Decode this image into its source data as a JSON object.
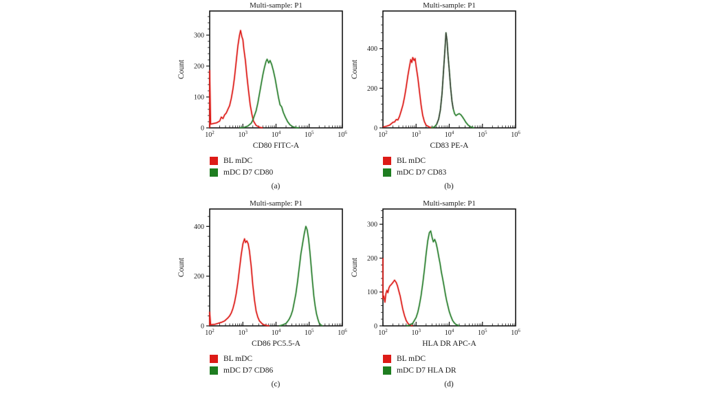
{
  "figure": {
    "background": "#ffffff",
    "y_axis_label": "Count",
    "accent_red": "#dd1b17",
    "accent_green": "#1e7d20"
  },
  "chart_data": [
    {
      "type": "line",
      "panel_label": "(a)",
      "title": "Multi-sample: P1",
      "xlabel": "CD80 FITC-A",
      "ylabel": "Count",
      "xscale": "log10",
      "xlim_log10": [
        2,
        6
      ],
      "ylim": [
        0,
        378
      ],
      "yticks": [
        0,
        100,
        200,
        300
      ],
      "y_minor_step": 20,
      "legend": [
        {
          "label": "BL mDC",
          "color": "#dd1b17"
        },
        {
          "label": "mDC D7 CD80",
          "color": "#1e7d20"
        }
      ],
      "series": [
        {
          "name": "BL mDC",
          "color": "#dd1b17",
          "points": [
            [
              2.0,
              0
            ],
            [
              2.0,
              185
            ],
            [
              2.03,
              12
            ],
            [
              2.1,
              14
            ],
            [
              2.2,
              16
            ],
            [
              2.3,
              22
            ],
            [
              2.35,
              35
            ],
            [
              2.4,
              30
            ],
            [
              2.45,
              42
            ],
            [
              2.5,
              48
            ],
            [
              2.55,
              60
            ],
            [
              2.6,
              72
            ],
            [
              2.65,
              95
            ],
            [
              2.7,
              125
            ],
            [
              2.75,
              165
            ],
            [
              2.8,
              215
            ],
            [
              2.85,
              265
            ],
            [
              2.9,
              300
            ],
            [
              2.93,
              315
            ],
            [
              2.97,
              295
            ],
            [
              3.0,
              285
            ],
            [
              3.03,
              255
            ],
            [
              3.08,
              215
            ],
            [
              3.12,
              170
            ],
            [
              3.17,
              120
            ],
            [
              3.22,
              75
            ],
            [
              3.27,
              45
            ],
            [
              3.32,
              22
            ],
            [
              3.4,
              8
            ],
            [
              3.5,
              2
            ],
            [
              3.6,
              0
            ]
          ]
        },
        {
          "name": "mDC D7 CD80",
          "color": "#2c8030",
          "points": [
            [
              2.9,
              0
            ],
            [
              3.05,
              2
            ],
            [
              3.15,
              6
            ],
            [
              3.25,
              15
            ],
            [
              3.3,
              25
            ],
            [
              3.4,
              55
            ],
            [
              3.45,
              80
            ],
            [
              3.5,
              110
            ],
            [
              3.55,
              140
            ],
            [
              3.6,
              170
            ],
            [
              3.65,
              195
            ],
            [
              3.7,
              215
            ],
            [
              3.73,
              222
            ],
            [
              3.78,
              210
            ],
            [
              3.82,
              218
            ],
            [
              3.87,
              205
            ],
            [
              3.92,
              185
            ],
            [
              3.97,
              160
            ],
            [
              4.02,
              130
            ],
            [
              4.07,
              100
            ],
            [
              4.12,
              75
            ],
            [
              4.17,
              68
            ],
            [
              4.22,
              50
            ],
            [
              4.28,
              35
            ],
            [
              4.35,
              20
            ],
            [
              4.42,
              10
            ],
            [
              4.5,
              4
            ],
            [
              4.6,
              1
            ],
            [
              4.7,
              0
            ]
          ]
        }
      ]
    },
    {
      "type": "line",
      "panel_label": "(b)",
      "title": "Multi-sample: P1",
      "xlabel": "CD83 PE-A",
      "ylabel": "Count",
      "xscale": "log10",
      "xlim_log10": [
        2,
        6
      ],
      "ylim": [
        0,
        590
      ],
      "yticks": [
        0,
        200,
        400
      ],
      "y_minor_step": 40,
      "legend": [
        {
          "label": "BL mDC",
          "color": "#dd1b17"
        },
        {
          "label": "mDC D7 CD83",
          "color": "#1e7d20"
        }
      ],
      "series": [
        {
          "name": "BL mDC",
          "color": "#dd1b17",
          "points": [
            [
              2.0,
              4
            ],
            [
              2.1,
              8
            ],
            [
              2.2,
              14
            ],
            [
              2.3,
              28
            ],
            [
              2.35,
              30
            ],
            [
              2.4,
              42
            ],
            [
              2.45,
              40
            ],
            [
              2.5,
              58
            ],
            [
              2.55,
              85
            ],
            [
              2.6,
              115
            ],
            [
              2.65,
              155
            ],
            [
              2.7,
              205
            ],
            [
              2.75,
              262
            ],
            [
              2.8,
              310
            ],
            [
              2.84,
              345
            ],
            [
              2.87,
              330
            ],
            [
              2.9,
              355
            ],
            [
              2.94,
              340
            ],
            [
              2.97,
              350
            ],
            [
              3.0,
              310
            ],
            [
              3.05,
              255
            ],
            [
              3.1,
              185
            ],
            [
              3.15,
              115
            ],
            [
              3.2,
              62
            ],
            [
              3.25,
              32
            ],
            [
              3.3,
              14
            ],
            [
              3.4,
              4
            ],
            [
              3.5,
              0
            ]
          ]
        },
        {
          "name": "mDC D7 CD83",
          "color": "#2c8030",
          "overlay": {
            "color": "#3f443c",
            "range": [
              3.62,
              4.12
            ]
          },
          "points": [
            [
              3.45,
              0
            ],
            [
              3.55,
              5
            ],
            [
              3.62,
              18
            ],
            [
              3.68,
              45
            ],
            [
              3.73,
              90
            ],
            [
              3.78,
              170
            ],
            [
              3.82,
              270
            ],
            [
              3.86,
              370
            ],
            [
              3.9,
              480
            ],
            [
              3.93,
              445
            ],
            [
              3.96,
              370
            ],
            [
              4.0,
              290
            ],
            [
              4.04,
              205
            ],
            [
              4.08,
              135
            ],
            [
              4.12,
              95
            ],
            [
              4.16,
              72
            ],
            [
              4.2,
              62
            ],
            [
              4.25,
              68
            ],
            [
              4.3,
              72
            ],
            [
              4.35,
              66
            ],
            [
              4.4,
              55
            ],
            [
              4.45,
              42
            ],
            [
              4.5,
              28
            ],
            [
              4.57,
              14
            ],
            [
              4.65,
              5
            ],
            [
              4.75,
              0
            ]
          ]
        }
      ]
    },
    {
      "type": "line",
      "panel_label": "(c)",
      "title": "Multi-sample: P1",
      "xlabel": "CD86 PC5.5-A",
      "ylabel": "Count",
      "xscale": "log10",
      "xlim_log10": [
        2,
        6
      ],
      "ylim": [
        0,
        470
      ],
      "yticks": [
        0,
        200,
        400
      ],
      "y_minor_step": 40,
      "legend": [
        {
          "label": "BL mDC",
          "color": "#dd1b17"
        },
        {
          "label": "mDC D7 CD86",
          "color": "#1e7d20"
        }
      ],
      "series": [
        {
          "name": "BL mDC",
          "color": "#dd1b17",
          "points": [
            [
              2.0,
              0
            ],
            [
              2.0,
              55
            ],
            [
              2.03,
              5
            ],
            [
              2.15,
              6
            ],
            [
              2.25,
              10
            ],
            [
              2.35,
              14
            ],
            [
              2.45,
              20
            ],
            [
              2.5,
              26
            ],
            [
              2.55,
              32
            ],
            [
              2.6,
              40
            ],
            [
              2.65,
              52
            ],
            [
              2.7,
              70
            ],
            [
              2.75,
              95
            ],
            [
              2.8,
              130
            ],
            [
              2.85,
              175
            ],
            [
              2.9,
              230
            ],
            [
              2.95,
              285
            ],
            [
              3.0,
              330
            ],
            [
              3.05,
              350
            ],
            [
              3.08,
              335
            ],
            [
              3.12,
              342
            ],
            [
              3.16,
              330
            ],
            [
              3.2,
              300
            ],
            [
              3.25,
              242
            ],
            [
              3.3,
              165
            ],
            [
              3.35,
              105
            ],
            [
              3.4,
              60
            ],
            [
              3.45,
              35
            ],
            [
              3.5,
              20
            ],
            [
              3.6,
              6
            ],
            [
              3.7,
              2
            ],
            [
              3.8,
              0
            ]
          ]
        },
        {
          "name": "mDC D7 CD86",
          "color": "#2c8030",
          "points": [
            [
              4.1,
              0
            ],
            [
              4.2,
              4
            ],
            [
              4.3,
              10
            ],
            [
              4.35,
              18
            ],
            [
              4.4,
              28
            ],
            [
              4.45,
              42
            ],
            [
              4.5,
              62
            ],
            [
              4.55,
              95
            ],
            [
              4.6,
              130
            ],
            [
              4.65,
              180
            ],
            [
              4.7,
              235
            ],
            [
              4.75,
              290
            ],
            [
              4.8,
              330
            ],
            [
              4.85,
              370
            ],
            [
              4.9,
              400
            ],
            [
              4.94,
              385
            ],
            [
              4.98,
              350
            ],
            [
              5.02,
              300
            ],
            [
              5.06,
              240
            ],
            [
              5.1,
              175
            ],
            [
              5.14,
              120
            ],
            [
              5.18,
              80
            ],
            [
              5.22,
              48
            ],
            [
              5.26,
              28
            ],
            [
              5.3,
              12
            ],
            [
              5.35,
              4
            ],
            [
              5.4,
              0
            ]
          ]
        }
      ]
    },
    {
      "type": "line",
      "panel_label": "(d)",
      "title": "Multi-sample: P1",
      "xlabel": "HLA DR APC-A",
      "ylabel": "Count",
      "xscale": "log10",
      "xlim_log10": [
        2,
        6
      ],
      "ylim": [
        0,
        345
      ],
      "yticks": [
        0,
        100,
        200,
        300
      ],
      "y_minor_step": 20,
      "legend": [
        {
          "label": "BL mDC",
          "color": "#dd1b17"
        },
        {
          "label": "mDC D7 HLA DR",
          "color": "#1e7d20"
        }
      ],
      "series": [
        {
          "name": "BL mDC",
          "color": "#dd1b17",
          "points": [
            [
              2.0,
              200
            ],
            [
              2.0,
              80
            ],
            [
              2.03,
              88
            ],
            [
              2.06,
              70
            ],
            [
              2.09,
              95
            ],
            [
              2.12,
              105
            ],
            [
              2.15,
              98
            ],
            [
              2.18,
              112
            ],
            [
              2.21,
              118
            ],
            [
              2.25,
              122
            ],
            [
              2.3,
              128
            ],
            [
              2.35,
              135
            ],
            [
              2.4,
              128
            ],
            [
              2.44,
              118
            ],
            [
              2.48,
              102
            ],
            [
              2.52,
              88
            ],
            [
              2.56,
              68
            ],
            [
              2.6,
              48
            ],
            [
              2.65,
              30
            ],
            [
              2.7,
              16
            ],
            [
              2.75,
              8
            ],
            [
              2.8,
              3
            ],
            [
              2.9,
              0
            ]
          ]
        },
        {
          "name": "mDC D7 HLA DR",
          "color": "#2c8030",
          "points": [
            [
              2.7,
              0
            ],
            [
              2.8,
              2
            ],
            [
              2.9,
              8
            ],
            [
              3.0,
              25
            ],
            [
              3.05,
              40
            ],
            [
              3.1,
              62
            ],
            [
              3.15,
              90
            ],
            [
              3.2,
              125
            ],
            [
              3.25,
              165
            ],
            [
              3.3,
              210
            ],
            [
              3.35,
              250
            ],
            [
              3.4,
              275
            ],
            [
              3.44,
              280
            ],
            [
              3.48,
              262
            ],
            [
              3.52,
              248
            ],
            [
              3.56,
              255
            ],
            [
              3.6,
              245
            ],
            [
              3.64,
              228
            ],
            [
              3.68,
              205
            ],
            [
              3.72,
              185
            ],
            [
              3.76,
              160
            ],
            [
              3.8,
              140
            ],
            [
              3.84,
              118
            ],
            [
              3.88,
              95
            ],
            [
              3.92,
              75
            ],
            [
              3.96,
              58
            ],
            [
              4.0,
              42
            ],
            [
              4.05,
              28
            ],
            [
              4.1,
              16
            ],
            [
              4.15,
              9
            ],
            [
              4.2,
              4
            ],
            [
              4.3,
              0
            ]
          ]
        }
      ]
    }
  ]
}
